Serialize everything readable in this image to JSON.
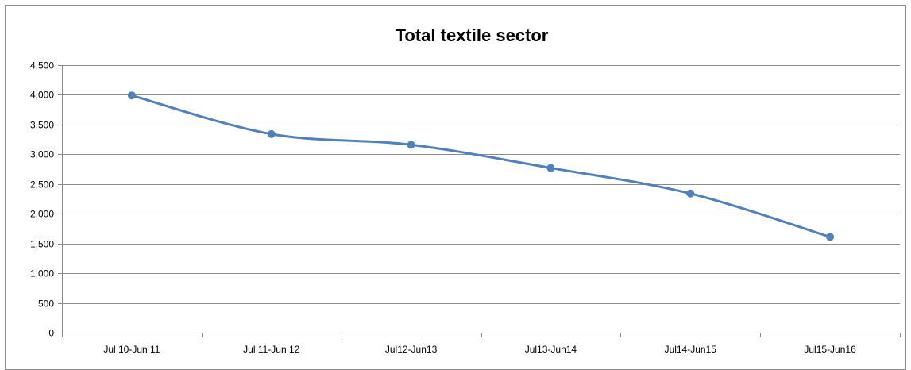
{
  "chart_data": {
    "type": "line",
    "title": "Total textile sector",
    "xlabel": "",
    "ylabel": "",
    "categories": [
      "Jul 10-Jun 11",
      "Jul 11-Jun 12",
      "Jul12-Jun13",
      "Jul13-Jun14",
      "Jul14-Jun15",
      "Jul15-Jun16"
    ],
    "series": [
      {
        "values": [
          3990,
          3340,
          3160,
          2770,
          2340,
          1610
        ],
        "color": "#4f81bd"
      }
    ],
    "ylim": [
      0,
      4500
    ],
    "y_ticks": [
      0,
      500,
      1000,
      1500,
      2000,
      2500,
      3000,
      3500,
      4000,
      4500
    ],
    "y_tick_labels": [
      "0",
      "500",
      "1,000",
      "1,500",
      "2,000",
      "2,500",
      "3,000",
      "3,500",
      "4,000",
      "4,500"
    ],
    "grid": true,
    "legend": "none",
    "smooth": true
  }
}
